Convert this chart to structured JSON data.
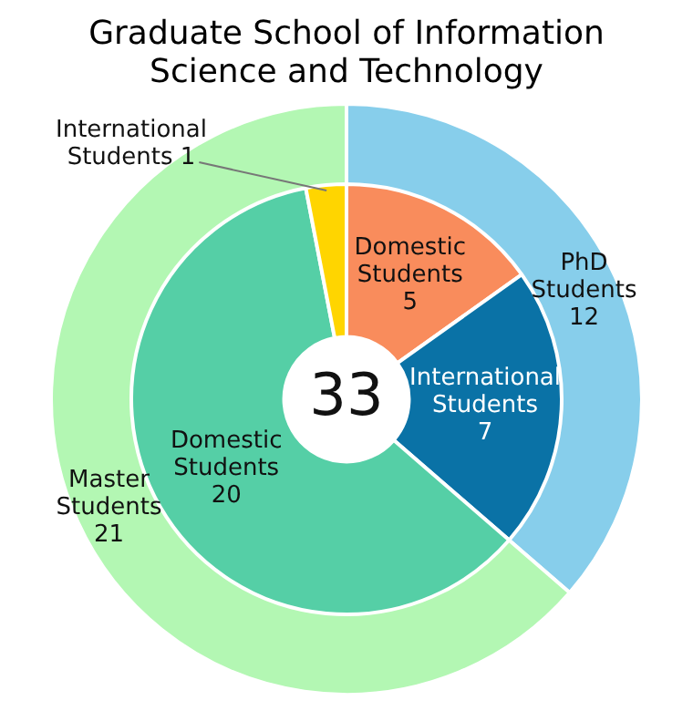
{
  "chart_data": [
    {
      "type": "donut",
      "title": "Graduate School of Information Science  and Technology",
      "data_labels": true,
      "legend": false,
      "categories": [
        "PhD Students",
        "Master Students"
      ],
      "values": [
        12,
        21
      ],
      "colors": [
        "#87ceeb",
        "#b3f7b3"
      ]
    },
    {
      "type": "donut",
      "data_labels": true,
      "legend": false,
      "categories": [
        "Domestic Students",
        "International Students",
        "Domestic Students",
        "International Students"
      ],
      "values": [
        5,
        7,
        20,
        1
      ],
      "colors": [
        "#f98c5c",
        "#0a72a6",
        "#55cfa6",
        "#ffd500"
      ],
      "annotations": [
        "33"
      ]
    }
  ]
}
